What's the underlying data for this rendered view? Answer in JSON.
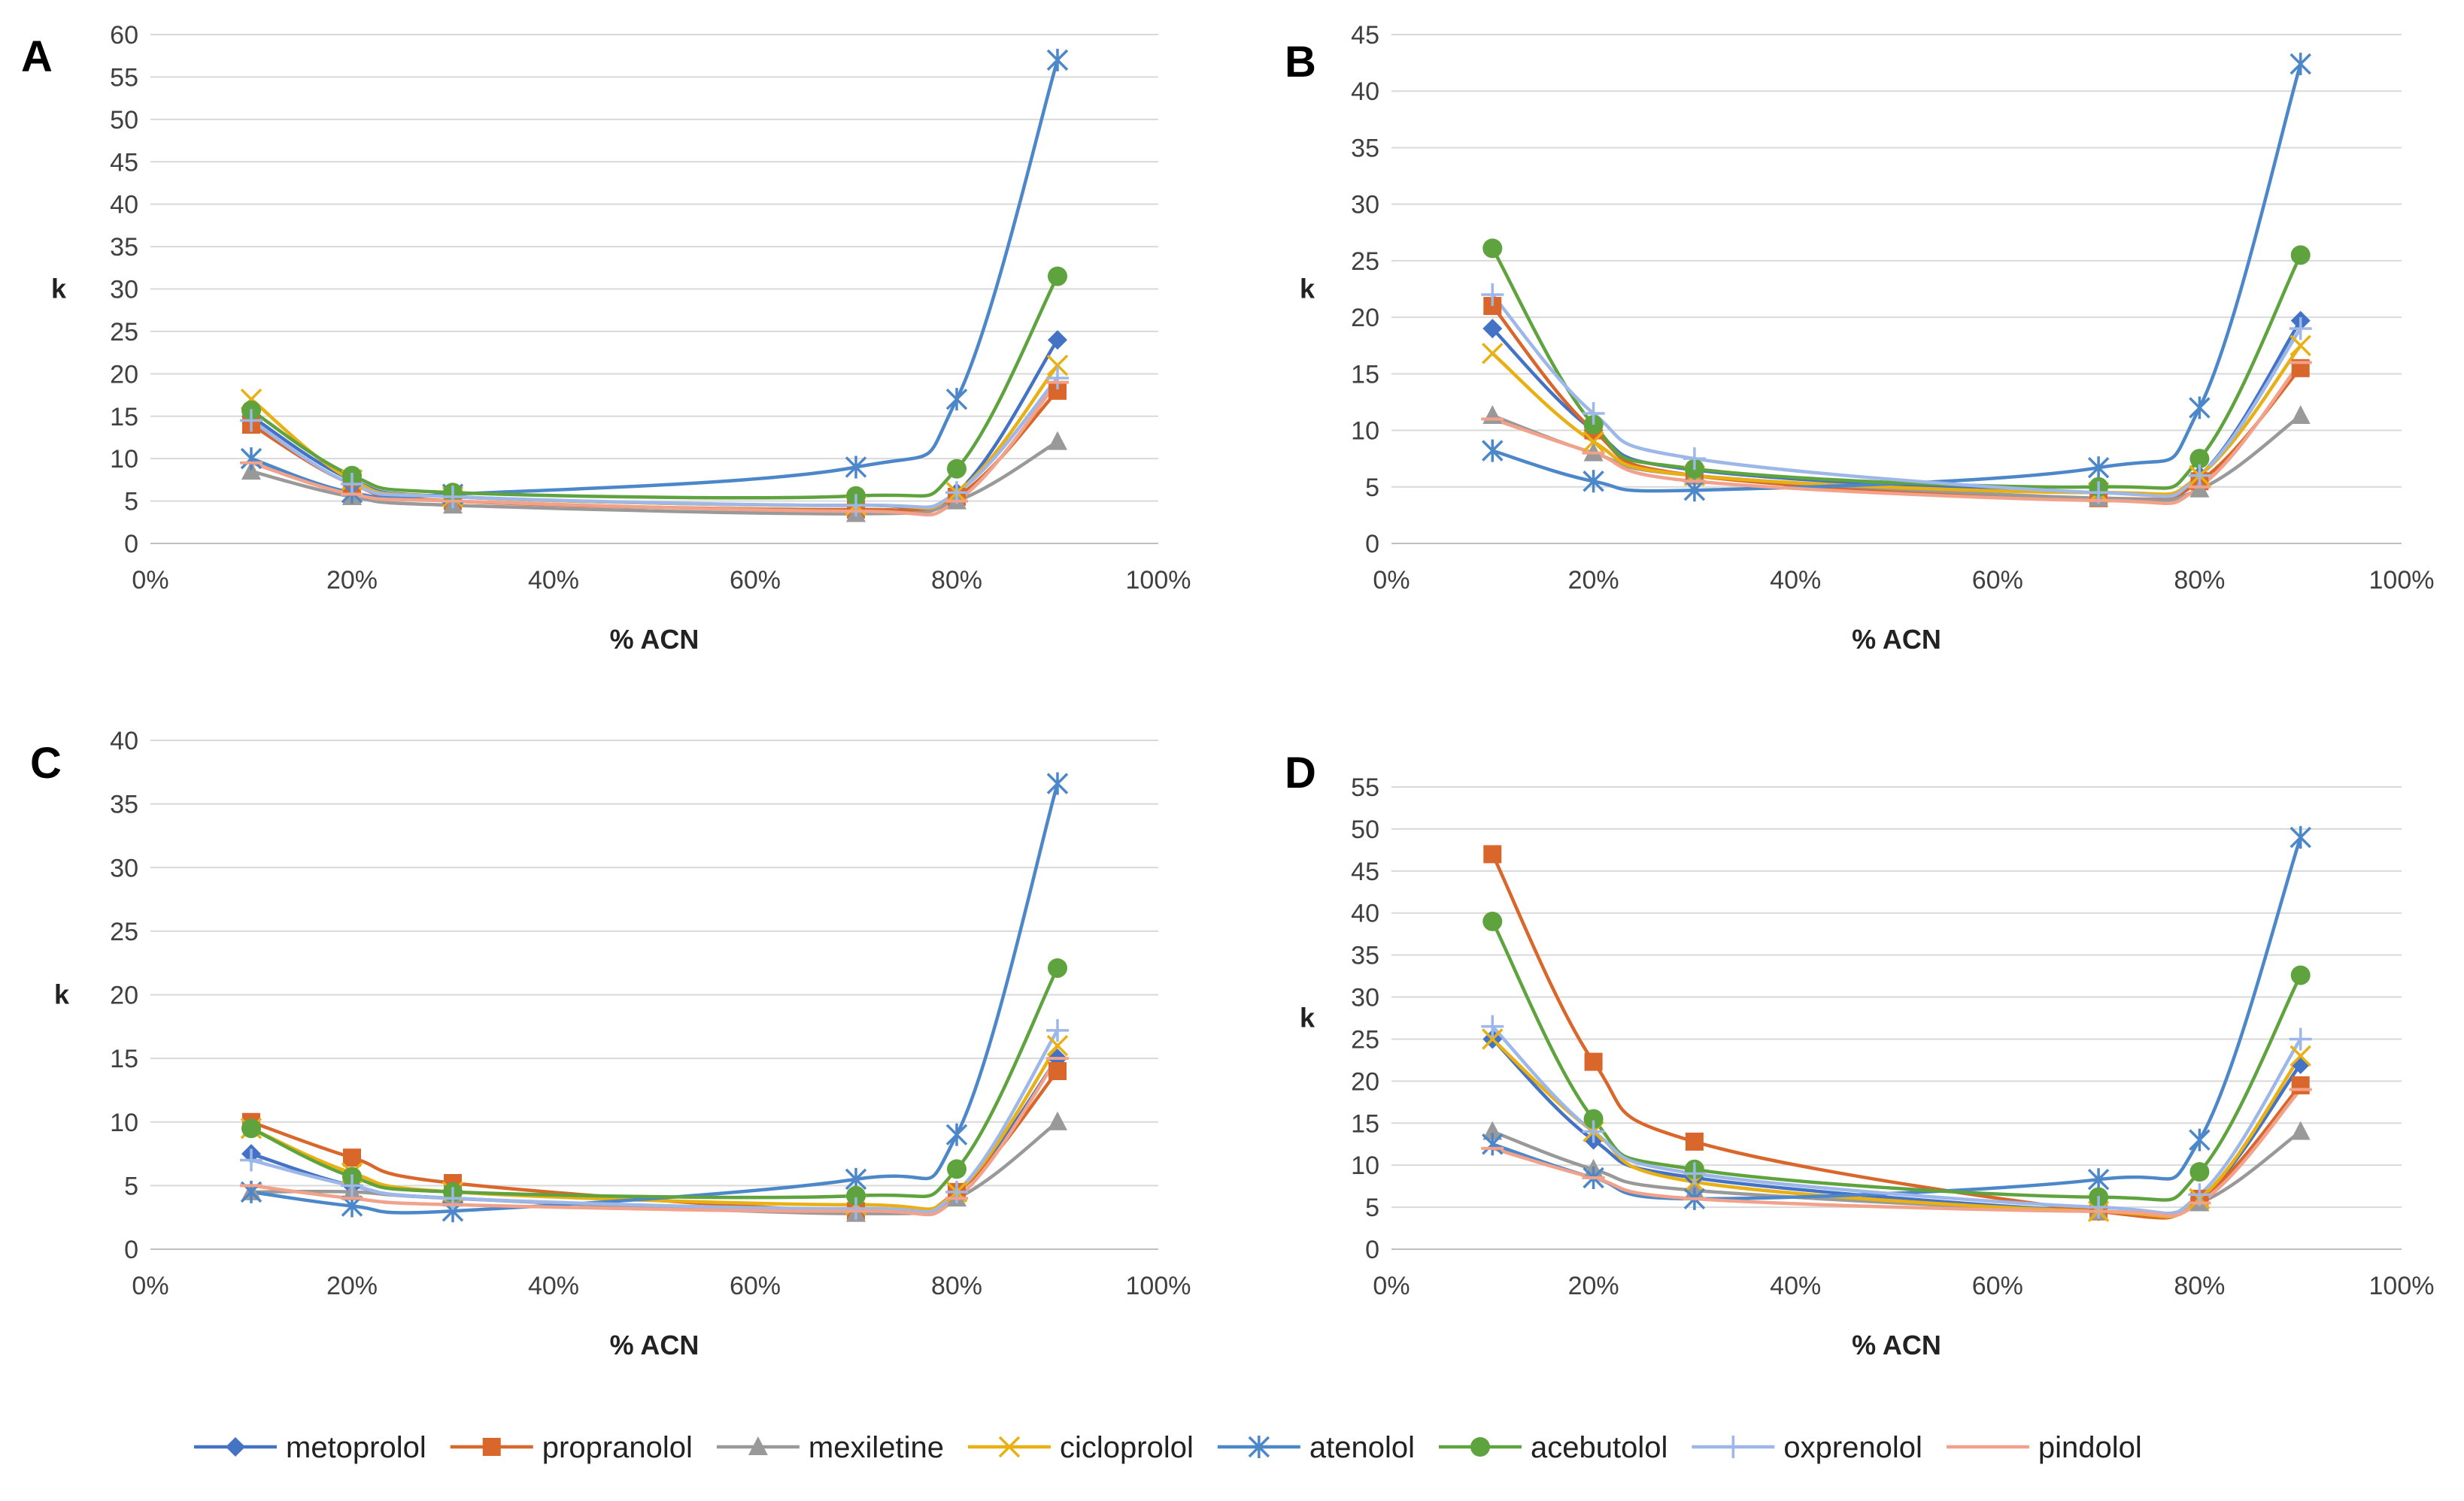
{
  "series_meta": [
    {
      "name": "metoprolol",
      "color": "#4472C4",
      "marker": "diamond"
    },
    {
      "name": "propranolol",
      "color": "#D9662A",
      "marker": "square"
    },
    {
      "name": "mexiletine",
      "color": "#999999",
      "marker": "triangle"
    },
    {
      "name": "cicloprolol",
      "color": "#E8B012",
      "marker": "x"
    },
    {
      "name": "atenolol",
      "color": "#4B87C9",
      "marker": "asterisk"
    },
    {
      "name": "acebutolol",
      "color": "#5EA33D",
      "marker": "circle"
    },
    {
      "name": "oxprenolol",
      "color": "#9DB7E8",
      "marker": "plus"
    },
    {
      "name": "pindolol",
      "color": "#F2A18A",
      "marker": "dash"
    }
  ],
  "chart_data": [
    {
      "type": "line",
      "panel": "A",
      "title": "",
      "xlabel": "% ACN",
      "ylabel": "k",
      "xlim": [
        0,
        100
      ],
      "ylim": [
        0,
        60
      ],
      "ystep": 5,
      "x": [
        10,
        20,
        30,
        70,
        80,
        90
      ],
      "x_tick_labels": [
        "0%",
        "20%",
        "40%",
        "60%",
        "80%",
        "100%"
      ],
      "y_tick_labels": [
        "0",
        "5",
        "10",
        "15",
        "20",
        "25",
        "30",
        "35",
        "40",
        "45",
        "50",
        "55",
        "60"
      ],
      "series": [
        {
          "name": "metoprolol",
          "values": [
            15,
            7.5,
            5.5,
            4.5,
            6,
            24
          ]
        },
        {
          "name": "propranolol",
          "values": [
            14,
            7,
            5,
            4,
            5.5,
            18
          ]
        },
        {
          "name": "mexiletine",
          "values": [
            8.5,
            5.5,
            4.5,
            3.5,
            5,
            12
          ]
        },
        {
          "name": "cicloprolol",
          "values": [
            17,
            7.5,
            5.5,
            4.5,
            6,
            21
          ]
        },
        {
          "name": "atenolol",
          "values": [
            10,
            6,
            5.8,
            9,
            17,
            57
          ]
        },
        {
          "name": "acebutolol",
          "values": [
            15.7,
            8,
            6,
            5.6,
            8.8,
            31.5
          ]
        },
        {
          "name": "oxprenolol",
          "values": [
            14.5,
            7,
            5.5,
            4.5,
            6,
            19.5
          ]
        },
        {
          "name": "pindolol",
          "values": [
            9.5,
            5.8,
            5,
            3.8,
            5,
            19
          ]
        }
      ]
    },
    {
      "type": "line",
      "panel": "B",
      "title": "",
      "xlabel": "% ACN",
      "ylabel": "k",
      "xlim": [
        0,
        100
      ],
      "ylim": [
        0,
        45
      ],
      "ystep": 5,
      "x": [
        10,
        20,
        30,
        70,
        80,
        90
      ],
      "x_tick_labels": [
        "0%",
        "20%",
        "40%",
        "60%",
        "80%",
        "100%"
      ],
      "y_tick_labels": [
        "0",
        "5",
        "10",
        "15",
        "20",
        "25",
        "30",
        "35",
        "40",
        "45"
      ],
      "series": [
        {
          "name": "metoprolol",
          "values": [
            19,
            10,
            6.5,
            4.5,
            6,
            19.7
          ]
        },
        {
          "name": "propranolol",
          "values": [
            21,
            10,
            6,
            4,
            5.5,
            15.5
          ]
        },
        {
          "name": "mexiletine",
          "values": [
            11.3,
            8,
            6,
            4,
            4.8,
            11.3
          ]
        },
        {
          "name": "cicloprolol",
          "values": [
            16.8,
            9,
            6,
            4.5,
            6,
            17.5
          ]
        },
        {
          "name": "atenolol",
          "values": [
            8.2,
            5.5,
            4.7,
            6.7,
            12,
            42.4
          ]
        },
        {
          "name": "acebutolol",
          "values": [
            26.1,
            10.5,
            6.6,
            5,
            7.5,
            25.5
          ]
        },
        {
          "name": "oxprenolol",
          "values": [
            22,
            11.5,
            7.5,
            4.5,
            6,
            19
          ]
        },
        {
          "name": "pindolol",
          "values": [
            11,
            8,
            5.5,
            3.8,
            5,
            16
          ]
        }
      ]
    },
    {
      "type": "line",
      "panel": "C",
      "title": "",
      "xlabel": "% ACN",
      "ylabel": "k",
      "xlim": [
        0,
        100
      ],
      "ylim": [
        0,
        40
      ],
      "ystep": 5,
      "x": [
        10,
        20,
        30,
        70,
        80,
        90
      ],
      "x_tick_labels": [
        "0%",
        "20%",
        "40%",
        "60%",
        "80%",
        "100%"
      ],
      "y_tick_labels": [
        "0",
        "5",
        "10",
        "15",
        "20",
        "25",
        "30",
        "35",
        "40"
      ],
      "series": [
        {
          "name": "metoprolol",
          "values": [
            7.5,
            5,
            4,
            3,
            4.5,
            15
          ]
        },
        {
          "name": "propranolol",
          "values": [
            10,
            7.2,
            5.2,
            3,
            4.5,
            14
          ]
        },
        {
          "name": "mexiletine",
          "values": [
            4.5,
            4.5,
            4,
            2.8,
            4,
            10
          ]
        },
        {
          "name": "cicloprolol",
          "values": [
            9.5,
            6,
            4.5,
            3.5,
            4.5,
            16
          ]
        },
        {
          "name": "atenolol",
          "values": [
            4.5,
            3.4,
            3,
            5.5,
            9,
            36.6
          ]
        },
        {
          "name": "acebutolol",
          "values": [
            9.5,
            5.7,
            4.5,
            4.2,
            6.3,
            22.1
          ]
        },
        {
          "name": "oxprenolol",
          "values": [
            7,
            5,
            4,
            3.2,
            4.5,
            17.2
          ]
        },
        {
          "name": "pindolol",
          "values": [
            5,
            4,
            3.5,
            3,
            4,
            15
          ]
        }
      ]
    },
    {
      "type": "line",
      "panel": "D",
      "title": "",
      "xlabel": "% ACN",
      "ylabel": "k",
      "xlim": [
        0,
        100
      ],
      "ylim": [
        0,
        55
      ],
      "ystep": 5,
      "x": [
        10,
        20,
        30,
        70,
        80,
        90
      ],
      "x_tick_labels": [
        "0%",
        "20%",
        "40%",
        "60%",
        "80%",
        "100%"
      ],
      "y_tick_labels": [
        "0",
        "5",
        "10",
        "15",
        "20",
        "25",
        "30",
        "35",
        "40",
        "45",
        "50",
        "55"
      ],
      "series": [
        {
          "name": "metoprolol",
          "values": [
            25,
            13,
            8.5,
            4.5,
            6,
            22
          ]
        },
        {
          "name": "propranolol",
          "values": [
            47,
            22.3,
            12.8,
            4.5,
            6,
            19.5
          ]
        },
        {
          "name": "mexiletine",
          "values": [
            14,
            9.5,
            7,
            4.5,
            5.5,
            14
          ]
        },
        {
          "name": "cicloprolol",
          "values": [
            25,
            14,
            8,
            4.5,
            6,
            23
          ]
        },
        {
          "name": "atenolol",
          "values": [
            12.5,
            8.5,
            6,
            8.3,
            13,
            49
          ]
        },
        {
          "name": "acebutolol",
          "values": [
            39,
            15.5,
            9.5,
            6.2,
            9.2,
            32.6
          ]
        },
        {
          "name": "oxprenolol",
          "values": [
            26.5,
            14,
            9,
            5,
            6.5,
            25
          ]
        },
        {
          "name": "pindolol",
          "values": [
            12,
            8.5,
            6,
            4.5,
            5.5,
            19
          ]
        }
      ]
    }
  ]
}
